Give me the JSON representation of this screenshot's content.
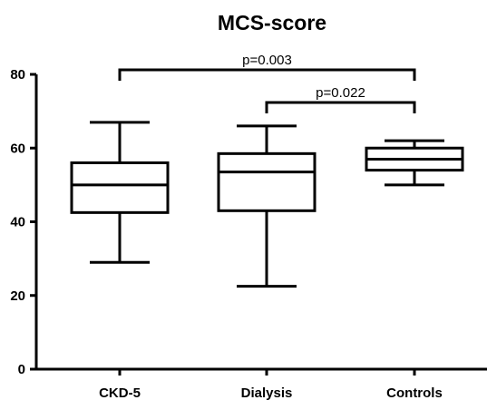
{
  "chart_data": {
    "type": "box",
    "title": "MCS-score",
    "xlabel": "",
    "ylabel": "",
    "ylim": [
      0,
      80
    ],
    "yticks": [
      0,
      20,
      40,
      60,
      80
    ],
    "categories": [
      "CKD-5",
      "Dialysis",
      "Controls"
    ],
    "boxes": [
      {
        "category": "CKD-5",
        "min": 29,
        "q1": 42.5,
        "median": 50,
        "q3": 56,
        "max": 67
      },
      {
        "category": "Dialysis",
        "min": 22.5,
        "q1": 43,
        "median": 53.5,
        "q3": 58.5,
        "max": 66
      },
      {
        "category": "Controls",
        "min": 50,
        "q1": 54,
        "median": 57,
        "q3": 60,
        "max": 62
      }
    ],
    "annotations": [
      {
        "from": "CKD-5",
        "to": "Controls",
        "label": "p=0.003"
      },
      {
        "from": "Dialysis",
        "to": "Controls",
        "label": "p=0.022"
      }
    ],
    "colors": {
      "stroke": "#000000",
      "fill": "#ffffff"
    },
    "grid": false,
    "legend": "none"
  }
}
